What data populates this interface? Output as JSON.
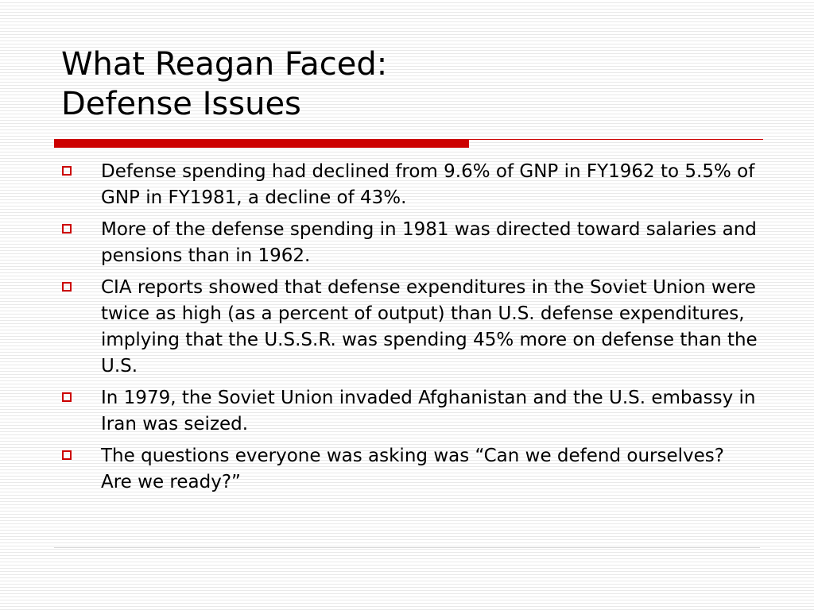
{
  "slide": {
    "title_line1": "What Reagan Faced:",
    "title_line2": "Defense Issues",
    "accent_color": "#cc0000",
    "bullet_marker_icon": "hollow-square-icon",
    "bullets": [
      "Defense spending had declined from 9.6% of GNP in FY1962 to 5.5% of GNP in FY1981, a decline of 43%.",
      "More of the defense spending in 1981 was directed toward salaries and pensions than in 1962.",
      "CIA reports showed that defense expenditures in the Soviet Union were twice as high (as a percent of output) than U.S. defense expenditures, implying that the U.S.S.R. was spending 45% more on defense than the U.S.",
      "In 1979, the Soviet Union invaded Afghanistan and the U.S. embassy in Iran was seized.",
      "The questions everyone was asking was “Can we defend ourselves? Are we ready?”"
    ]
  }
}
